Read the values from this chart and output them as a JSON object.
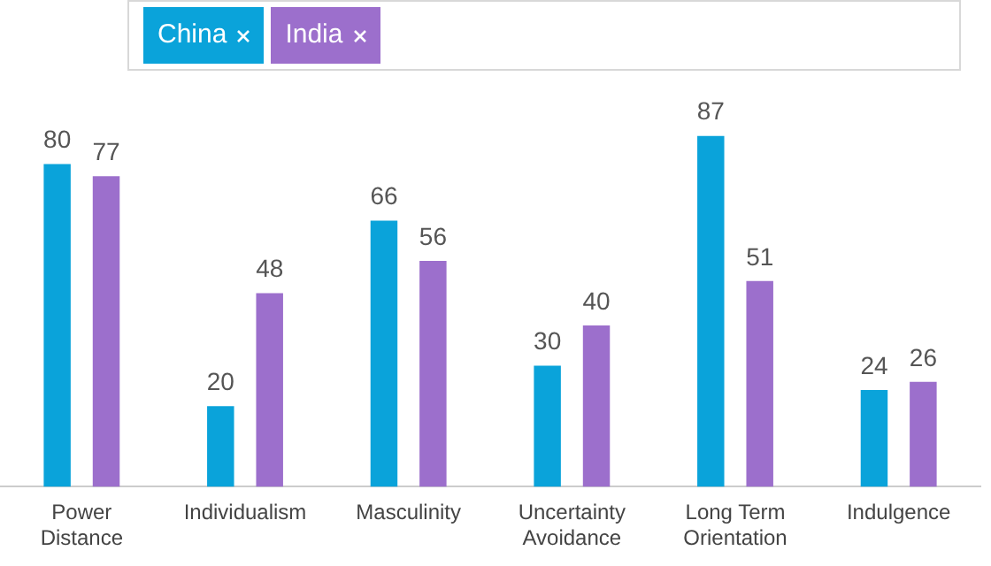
{
  "chart_data": {
    "type": "bar",
    "categories": [
      "Power Distance",
      "Individualism",
      "Masculinity",
      "Uncertainty Avoidance",
      "Long Term Orientation",
      "Indulgence"
    ],
    "series": [
      {
        "name": "China",
        "color": "#0aa3da",
        "values": [
          80,
          20,
          66,
          30,
          87,
          24
        ]
      },
      {
        "name": "India",
        "color": "#9c6fcc",
        "values": [
          77,
          48,
          56,
          40,
          51,
          26
        ]
      }
    ],
    "data_labels": true,
    "legend": "top",
    "grid": false
  }
}
